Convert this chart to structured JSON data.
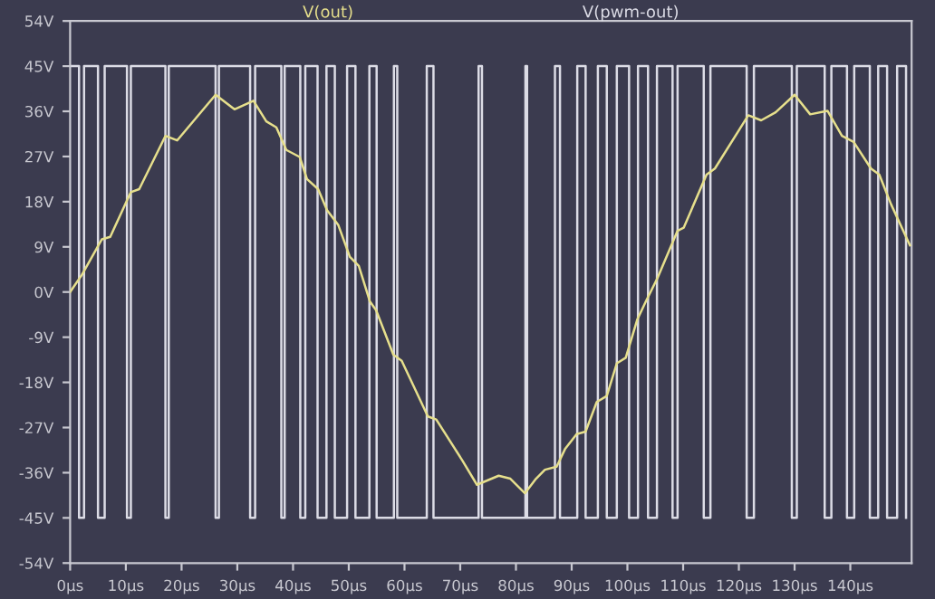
{
  "chart_data": {
    "type": "line",
    "xlim": [
      0,
      151
    ],
    "ylim": [
      -54,
      54
    ],
    "xticks": [
      {
        "value": 0,
        "label": "0μs"
      },
      {
        "value": 10,
        "label": "10μs"
      },
      {
        "value": 20,
        "label": "20μs"
      },
      {
        "value": 30,
        "label": "30μs"
      },
      {
        "value": 40,
        "label": "40μs"
      },
      {
        "value": 50,
        "label": "50μs"
      },
      {
        "value": 60,
        "label": "60μs"
      },
      {
        "value": 70,
        "label": "70μs"
      },
      {
        "value": 80,
        "label": "80μs"
      },
      {
        "value": 90,
        "label": "90μs"
      },
      {
        "value": 100,
        "label": "100μs"
      },
      {
        "value": 110,
        "label": "110μs"
      },
      {
        "value": 120,
        "label": "120μs"
      },
      {
        "value": 130,
        "label": "130μs"
      },
      {
        "value": 140,
        "label": "140μs"
      }
    ],
    "yticks": [
      {
        "value": 54,
        "label": "54V"
      },
      {
        "value": 45,
        "label": "45V"
      },
      {
        "value": 36,
        "label": "36V"
      },
      {
        "value": 27,
        "label": "27V"
      },
      {
        "value": 18,
        "label": "18V"
      },
      {
        "value": 9,
        "label": "9V"
      },
      {
        "value": 0,
        "label": "0V"
      },
      {
        "value": -9,
        "label": "-9V"
      },
      {
        "value": -18,
        "label": "-18V"
      },
      {
        "value": -27,
        "label": "-27V"
      },
      {
        "value": -36,
        "label": "-36V"
      },
      {
        "value": -45,
        "label": "-45V"
      },
      {
        "value": -54,
        "label": "-54V"
      }
    ],
    "grid": false,
    "legend": "top",
    "marker": "none",
    "line_style": "solid",
    "series": [
      {
        "name": "V(out)",
        "color": "#e6df8c",
        "x": [
          0,
          2.1,
          5.7,
          7.2,
          10.9,
          12.4,
          17.1,
          19.2,
          26.1,
          29.5,
          32.9,
          35.2,
          37.0,
          38.8,
          41.2,
          42.5,
          44.5,
          46.1,
          48.1,
          50.2,
          51.8,
          53.8,
          54.9,
          58.0,
          59.5,
          64.2,
          65.7,
          70.4,
          73.0,
          76.9,
          79.0,
          81.6,
          83.6,
          85.2,
          87.3,
          88.8,
          90.9,
          92.5,
          94.5,
          96.3,
          98.1,
          99.7,
          101.8,
          103.3,
          105.4,
          109.0,
          110.1,
          114.2,
          115.7,
          121.7,
          124.0,
          126.6,
          130.0,
          132.8,
          135.9,
          138.5,
          140.6,
          143.7,
          145.2,
          147.3,
          150.7
        ],
        "values": [
          0,
          3.4,
          10.5,
          11.0,
          19.9,
          20.5,
          31.1,
          30.2,
          39.3,
          36.4,
          38.1,
          34.0,
          32.8,
          28.3,
          26.9,
          22.5,
          20.5,
          16.3,
          13.4,
          7.0,
          5.2,
          -1.9,
          -3.6,
          -12.5,
          -13.7,
          -24.8,
          -25.4,
          -33.6,
          -38.4,
          -36.6,
          -37.2,
          -40.1,
          -37.2,
          -35.4,
          -34.8,
          -31.3,
          -28.3,
          -27.8,
          -21.9,
          -20.7,
          -14.2,
          -13.1,
          -5.4,
          -1.9,
          2.8,
          12.2,
          12.8,
          23.4,
          24.6,
          35.2,
          34.2,
          35.8,
          39.3,
          35.4,
          36.1,
          31.1,
          29.9,
          24.6,
          23.4,
          17.5,
          9.3
        ]
      },
      {
        "name": "V(pwm-out)",
        "color": "#dcdce6",
        "type": "step",
        "x": [
          0,
          1.6,
          2.5,
          5.0,
          6.2,
          10.2,
          10.9,
          17.1,
          17.7,
          26.1,
          26.7,
          32.3,
          33.2,
          37.9,
          38.5,
          41.3,
          42.2,
          44.4,
          46.0,
          47.5,
          49.7,
          51.2,
          53.7,
          55.0,
          58.1,
          58.7,
          64.0,
          65.2,
          73.3,
          73.9,
          81.7,
          82.0,
          87.0,
          87.9,
          91.0,
          92.5,
          94.7,
          96.3,
          98.1,
          100.3,
          101.9,
          103.7,
          105.3,
          108.1,
          109.0,
          113.7,
          114.9,
          121.4,
          122.7,
          129.5,
          130.4,
          135.4,
          136.6,
          139.4,
          140.7,
          143.5,
          145.0,
          146.6,
          148.4,
          150.0
        ],
        "values": [
          45,
          -45,
          45,
          -45,
          45,
          -45,
          45,
          -45,
          45,
          -45,
          45,
          -45,
          45,
          -45,
          45,
          -45,
          45,
          -45,
          45,
          -45,
          45,
          -45,
          45,
          -45,
          45,
          -45,
          45,
          -45,
          45,
          -45,
          45,
          -45,
          45,
          -45,
          45,
          -45,
          45,
          -45,
          45,
          -45,
          45,
          -45,
          45,
          -45,
          45,
          -45,
          45,
          -45,
          45,
          -45,
          45,
          -45,
          45,
          -45,
          45,
          -45,
          45,
          -45,
          45,
          -45
        ]
      }
    ]
  }
}
